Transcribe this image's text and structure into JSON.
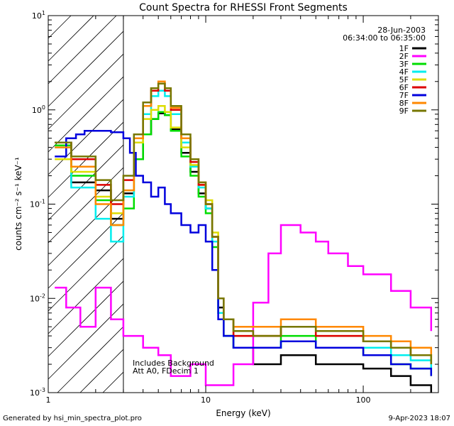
{
  "chart_data": {
    "type": "line",
    "title": "Count Spectra for RHESSI Front Segments",
    "xlabel": "Energy (keV)",
    "ylabel": "counts cm⁻² s⁻¹ keV⁻¹",
    "xscale": "log",
    "yscale": "log",
    "xlim": [
      1,
      300
    ],
    "ylim": [
      0.001,
      10
    ],
    "x_tick_labels": [
      {
        "value": 1,
        "label": "1"
      },
      {
        "value": 10,
        "label": "10"
      },
      {
        "value": 100,
        "label": "100"
      }
    ],
    "y_tick_labels": [
      {
        "value": 10,
        "base": "10",
        "exp": "1"
      },
      {
        "value": 1,
        "base": "10",
        "exp": "0"
      },
      {
        "value": 0.1,
        "base": "10",
        "exp": "-1"
      },
      {
        "value": 0.01,
        "base": "10",
        "exp": "-2"
      },
      {
        "value": 0.001,
        "base": "10",
        "exp": "-3"
      }
    ],
    "excluded_region": {
      "from_keV": 1,
      "to_keV": 3,
      "pattern": "diagonal-hatch"
    },
    "legend_header": {
      "date": "28-Jun-2003",
      "time_range": "06:34:00 to 06:35:00"
    },
    "legend_position": "top-right",
    "annotation": [
      "Includes Background",
      "Att A0, FDecim 1"
    ],
    "series": [
      {
        "name": "1F",
        "color": "#000000",
        "x": [
          1.1,
          1.4,
          2.0,
          2.5,
          3.0,
          3.5,
          4.0,
          4.5,
          5.0,
          5.5,
          6.0,
          7.0,
          8.0,
          9.0,
          10,
          11,
          12,
          13,
          15,
          20,
          30,
          50,
          100,
          150,
          200,
          270
        ],
        "y": [
          0.45,
          0.17,
          0.14,
          0.07,
          0.13,
          0.3,
          0.55,
          0.8,
          0.92,
          0.88,
          0.62,
          0.35,
          0.22,
          0.13,
          0.09,
          0.04,
          0.008,
          0.004,
          0.003,
          0.002,
          0.0025,
          0.002,
          0.0018,
          0.0015,
          0.0012,
          0.001
        ]
      },
      {
        "name": "2F",
        "color": "#ff00ff",
        "x": [
          1.1,
          1.3,
          1.6,
          2.0,
          2.5,
          3.0,
          4.0,
          5.0,
          6.0,
          8.0,
          10,
          15,
          20,
          25,
          30,
          40,
          50,
          60,
          80,
          100,
          150,
          200,
          270
        ],
        "y": [
          0.013,
          0.008,
          0.005,
          0.013,
          0.006,
          0.004,
          0.003,
          0.0025,
          0.0015,
          0.002,
          0.0012,
          0.002,
          0.009,
          0.03,
          0.06,
          0.05,
          0.04,
          0.03,
          0.022,
          0.018,
          0.012,
          0.008,
          0.0045
        ]
      },
      {
        "name": "3F",
        "color": "#00dd00",
        "x": [
          1.1,
          1.4,
          2.0,
          2.5,
          3.0,
          3.5,
          4.0,
          4.5,
          5.0,
          5.5,
          6.0,
          7.0,
          8.0,
          9.0,
          10,
          11,
          12,
          13,
          15,
          20,
          30,
          50,
          100,
          150,
          200,
          270
        ],
        "y": [
          0.42,
          0.2,
          0.11,
          0.06,
          0.09,
          0.3,
          0.55,
          0.8,
          0.95,
          0.88,
          0.6,
          0.32,
          0.2,
          0.12,
          0.08,
          0.035,
          0.007,
          0.004,
          0.003,
          0.003,
          0.004,
          0.003,
          0.0025,
          0.002,
          0.0018,
          0.0015
        ]
      },
      {
        "name": "4F",
        "color": "#00eeee",
        "x": [
          1.1,
          1.4,
          2.0,
          2.5,
          3.0,
          3.5,
          4.0,
          4.5,
          5.0,
          5.5,
          6.0,
          7.0,
          8.0,
          9.0,
          10,
          11,
          12,
          13,
          15,
          20,
          30,
          50,
          100,
          150,
          200,
          270
        ],
        "y": [
          0.4,
          0.15,
          0.07,
          0.04,
          0.12,
          0.45,
          0.9,
          1.4,
          1.6,
          1.4,
          0.9,
          0.45,
          0.25,
          0.15,
          0.09,
          0.04,
          0.007,
          0.004,
          0.003,
          0.003,
          0.0035,
          0.003,
          0.003,
          0.0025,
          0.0022,
          0.0018
        ]
      },
      {
        "name": "5F",
        "color": "#dddd00",
        "x": [
          1.1,
          1.4,
          2.0,
          2.5,
          3.0,
          3.5,
          4.0,
          4.5,
          5.0,
          5.5,
          6.0,
          7.0,
          8.0,
          9.0,
          10,
          11,
          12,
          13,
          15,
          20,
          30,
          50,
          100,
          150,
          200,
          270
        ],
        "y": [
          0.3,
          0.22,
          0.12,
          0.08,
          0.14,
          0.45,
          0.8,
          1.0,
          1.1,
          0.95,
          0.65,
          0.4,
          0.26,
          0.16,
          0.11,
          0.05,
          0.01,
          0.006,
          0.004,
          0.004,
          0.005,
          0.004,
          0.0035,
          0.003,
          0.0025,
          0.002
        ]
      },
      {
        "name": "6F",
        "color": "#dd0000",
        "x": [
          1.1,
          1.4,
          2.0,
          2.5,
          3.0,
          3.5,
          4.0,
          4.5,
          5.0,
          5.5,
          6.0,
          7.0,
          8.0,
          9.0,
          10,
          11,
          12,
          13,
          15,
          20,
          30,
          50,
          100,
          150,
          200,
          270
        ],
        "y": [
          0.45,
          0.3,
          0.16,
          0.1,
          0.18,
          0.5,
          1.1,
          1.6,
          1.9,
          1.6,
          1.0,
          0.5,
          0.28,
          0.16,
          0.1,
          0.045,
          0.01,
          0.006,
          0.004,
          0.004,
          0.005,
          0.004,
          0.0035,
          0.003,
          0.0025,
          0.002
        ]
      },
      {
        "name": "7F",
        "color": "#0000dd",
        "x": [
          1.1,
          1.3,
          1.5,
          1.7,
          2.0,
          2.5,
          3.0,
          3.3,
          3.6,
          4.0,
          4.5,
          5.0,
          5.5,
          6.0,
          7.0,
          8.0,
          9.0,
          10,
          11,
          12,
          13,
          15,
          20,
          30,
          50,
          100,
          150,
          200,
          270
        ],
        "y": [
          0.32,
          0.5,
          0.55,
          0.6,
          0.6,
          0.58,
          0.5,
          0.35,
          0.2,
          0.17,
          0.12,
          0.15,
          0.1,
          0.08,
          0.06,
          0.05,
          0.06,
          0.04,
          0.02,
          0.006,
          0.004,
          0.003,
          0.003,
          0.0035,
          0.003,
          0.0025,
          0.002,
          0.0018,
          0.0015
        ]
      },
      {
        "name": "8F",
        "color": "#ff8800",
        "x": [
          1.1,
          1.4,
          2.0,
          2.5,
          3.0,
          3.5,
          4.0,
          4.5,
          5.0,
          5.5,
          6.0,
          7.0,
          8.0,
          9.0,
          10,
          11,
          12,
          13,
          15,
          20,
          30,
          50,
          100,
          150,
          200,
          270
        ],
        "y": [
          0.4,
          0.25,
          0.1,
          0.06,
          0.14,
          0.5,
          1.1,
          1.7,
          2.0,
          1.7,
          1.05,
          0.5,
          0.3,
          0.17,
          0.1,
          0.045,
          0.01,
          0.006,
          0.005,
          0.005,
          0.006,
          0.005,
          0.004,
          0.0035,
          0.003,
          0.0025
        ]
      },
      {
        "name": "9F",
        "color": "#777700",
        "x": [
          1.1,
          1.4,
          2.0,
          2.5,
          3.0,
          3.5,
          4.0,
          4.5,
          5.0,
          5.5,
          6.0,
          7.0,
          8.0,
          9.0,
          10,
          11,
          12,
          13,
          15,
          20,
          30,
          50,
          100,
          150,
          200,
          270
        ],
        "y": [
          0.45,
          0.32,
          0.18,
          0.11,
          0.2,
          0.55,
          1.2,
          1.7,
          1.9,
          1.7,
          1.1,
          0.55,
          0.3,
          0.17,
          0.1,
          0.045,
          0.01,
          0.006,
          0.0045,
          0.004,
          0.005,
          0.0045,
          0.0035,
          0.003,
          0.0025,
          0.002
        ]
      }
    ]
  },
  "footer": {
    "generated_by": "Generated by hsi_min_spectra_plot.pro",
    "timestamp": "9-Apr-2023 18:07"
  }
}
